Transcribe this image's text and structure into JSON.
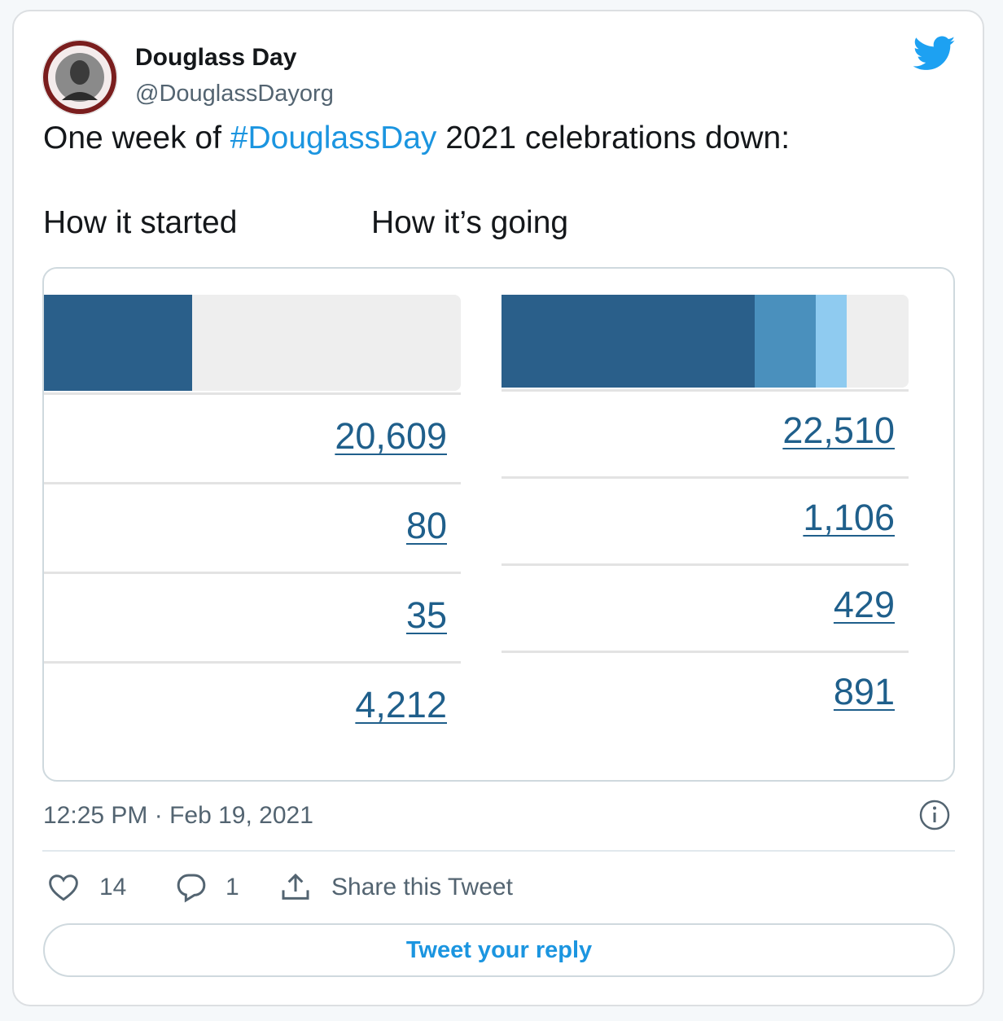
{
  "author": {
    "name": "Douglass Day",
    "handle": "@DouglassDayorg"
  },
  "text": {
    "before": "One week of ",
    "hashtag": "#DouglassDay",
    "after": " 2021 celebrations down:"
  },
  "captions": [
    "How it started",
    "How it’s going"
  ],
  "image": {
    "panels": [
      {
        "numbers": [
          "20,609",
          "80",
          "35",
          "4,212"
        ]
      },
      {
        "numbers": [
          "22,510",
          "1,106",
          "429",
          "891"
        ]
      }
    ]
  },
  "timestamp": "12:25 PM · Feb 19, 2021",
  "actions": {
    "likes": "14",
    "replies": "1",
    "share": "Share this Tweet"
  },
  "reply_button": "Tweet your reply"
}
